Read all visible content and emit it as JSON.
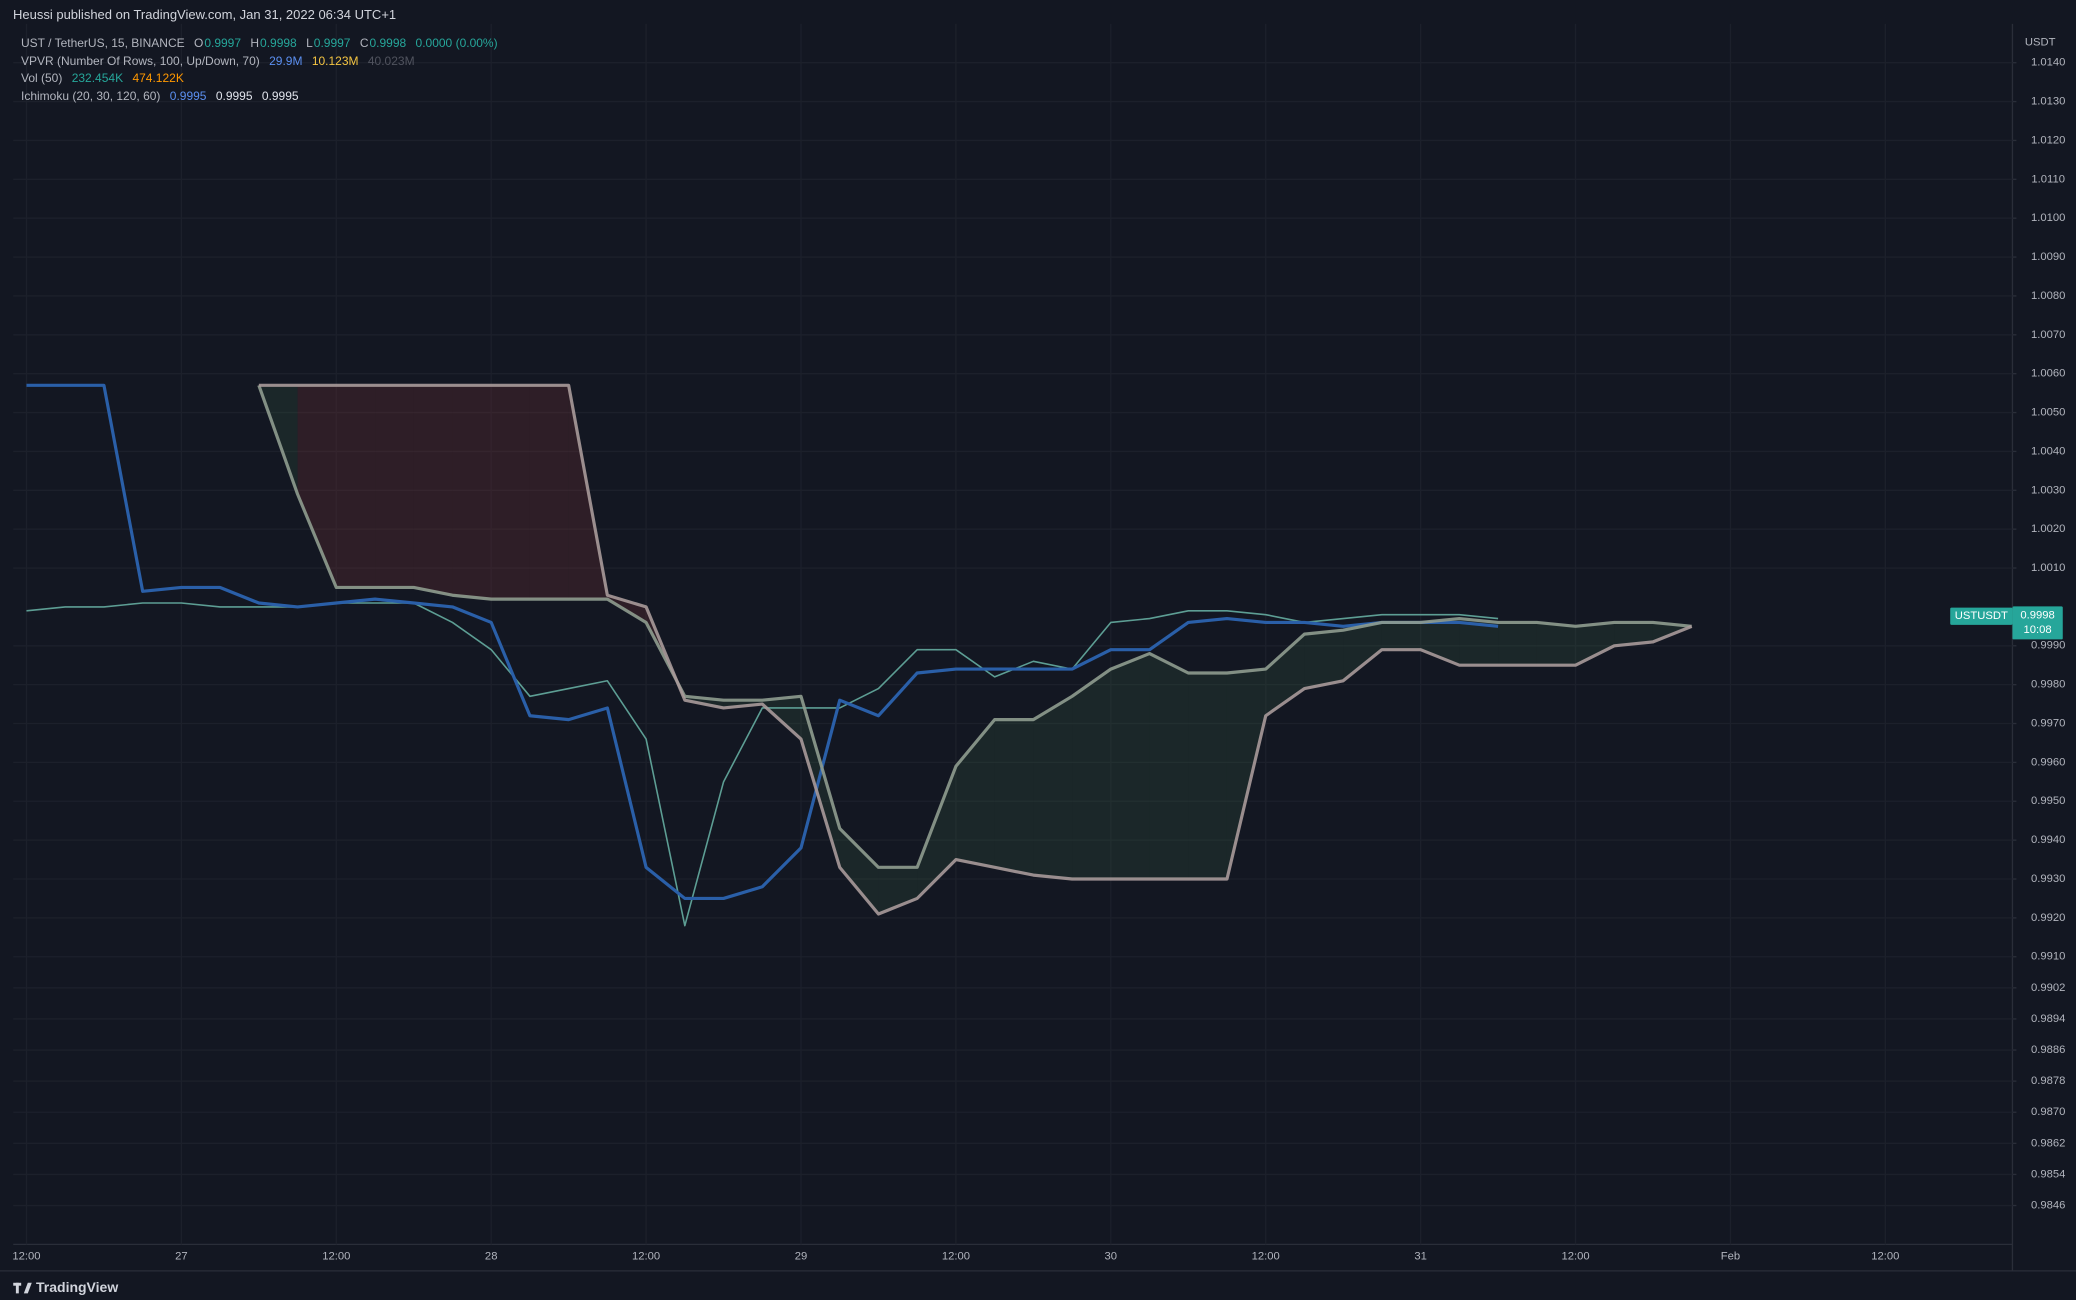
{
  "header": {
    "publisher": "Heussi published on TradingView.com, Jan 31, 2022 06:34 UTC+1"
  },
  "legend": {
    "symbol": "UST / TetherUS, 15, BINANCE",
    "ohlc": [
      {
        "key": "O",
        "value": "0.9997"
      },
      {
        "key": "H",
        "value": "0.9998"
      },
      {
        "key": "L",
        "value": "0.9997"
      },
      {
        "key": "C",
        "value": "0.9998"
      }
    ],
    "change": "0.0000 (0.00%)",
    "vpvr": {
      "label": "VPVR (Number Of Rows, 100, Up/Down, 70)",
      "values": [
        "29.9M",
        "10.123M",
        "40.023M"
      ]
    },
    "vol": {
      "label": "Vol (50)",
      "values": [
        "232.454K",
        "474.122K"
      ]
    },
    "ichimoku": {
      "label": "Ichimoku (20, 30, 120, 60)",
      "values": [
        "0.9995",
        "0.9995",
        "0.9995"
      ]
    }
  },
  "chart_data": {
    "type": "line",
    "y_unit": "USDT",
    "categories": [
      "12:00",
      null,
      null,
      null,
      "27",
      null,
      null,
      null,
      "12:00",
      null,
      null,
      null,
      "28",
      null,
      null,
      null,
      "12:00",
      null,
      null,
      null,
      "29",
      null,
      null,
      null,
      "12:00",
      null,
      null,
      null,
      "30",
      null,
      null,
      null,
      "12:00",
      null,
      null,
      null,
      "31",
      null,
      null,
      null,
      "12:00",
      null,
      null,
      null,
      "Feb",
      null,
      null,
      null,
      "12:00"
    ],
    "series": [
      {
        "color": "#5d9e94",
        "values": [
          0.9999,
          1.0,
          1.0,
          1.0001,
          1.0001,
          1.0,
          1.0,
          1.0,
          1.0001,
          1.0001,
          1.0001,
          0.9996,
          0.9989,
          0.9977,
          0.9979,
          0.9981,
          0.9966,
          0.9918,
          0.9955,
          0.9974,
          0.9974,
          0.9974,
          0.9979,
          0.9989,
          0.9989,
          0.9982,
          0.9986,
          0.9984,
          0.9996,
          0.9997,
          0.9999,
          0.9999,
          0.9998,
          0.9996,
          0.9997,
          0.9998,
          0.9998,
          0.9998,
          0.9997,
          null,
          null,
          null,
          null,
          null,
          null,
          null,
          null,
          null,
          null
        ]
      },
      {
        "color": "#2a5fa8",
        "values": [
          1.0057,
          1.0057,
          1.0057,
          1.0004,
          1.0005,
          1.0005,
          1.0001,
          1.0,
          1.0001,
          1.0002,
          1.0001,
          1.0,
          0.9996,
          0.9972,
          0.9971,
          0.9974,
          0.9933,
          0.9925,
          0.9925,
          0.9928,
          0.9938,
          0.9976,
          0.9972,
          0.9983,
          0.9984,
          0.9984,
          0.9984,
          0.9984,
          0.9989,
          0.9989,
          0.9996,
          0.9997,
          0.9996,
          0.9996,
          0.9995,
          0.9996,
          0.9996,
          0.9996,
          0.9995,
          null,
          null,
          null,
          null,
          null,
          null,
          null,
          null,
          null,
          null
        ]
      },
      {
        "color": "#8f9c8f",
        "values": [
          null,
          null,
          null,
          null,
          null,
          null,
          1.0057,
          1.0029,
          1.0005,
          1.0005,
          1.0005,
          1.0003,
          1.0002,
          1.0002,
          1.0002,
          1.0002,
          0.9996,
          0.9977,
          0.9976,
          0.9976,
          0.9977,
          0.9943,
          0.9933,
          0.9933,
          0.9959,
          0.9971,
          0.9971,
          0.9977,
          0.9984,
          0.9988,
          0.9983,
          0.9983,
          0.9984,
          0.9993,
          0.9994,
          0.9996,
          0.9996,
          0.9997,
          0.9996,
          0.9996,
          0.9995,
          0.9996,
          0.9996,
          0.9995,
          null,
          null,
          null,
          null,
          null
        ]
      },
      {
        "color": "#a89a9a",
        "values": [
          null,
          null,
          null,
          null,
          null,
          null,
          1.0057,
          1.0057,
          1.0057,
          1.0057,
          1.0057,
          1.0057,
          1.0057,
          1.0057,
          1.0057,
          1.0003,
          1.0,
          0.9976,
          0.9974,
          0.9975,
          0.9966,
          0.9933,
          0.9921,
          0.9925,
          0.9935,
          0.9933,
          0.9931,
          0.993,
          0.993,
          0.993,
          0.993,
          0.993,
          0.9972,
          0.9979,
          0.9981,
          0.9989,
          0.9989,
          0.9985,
          0.9985,
          0.9985,
          0.9985,
          0.999,
          0.9991,
          0.9995,
          null,
          null,
          null,
          null,
          null
        ]
      }
    ],
    "cloud_colors": [
      "rgba(60,100,70,0.22)",
      "rgba(120,50,55,0.28)"
    ],
    "ylim": [
      0.9836,
      1.015
    ],
    "yticks": [
      {
        "value": 1.014,
        "label": "1.0140"
      },
      {
        "value": 1.013,
        "label": "1.0130"
      },
      {
        "value": 1.012,
        "label": "1.0120"
      },
      {
        "value": 1.011,
        "label": "1.0110"
      },
      {
        "value": 1.01,
        "label": "1.0100"
      },
      {
        "value": 1.009,
        "label": "1.0090"
      },
      {
        "value": 1.008,
        "label": "1.0080"
      },
      {
        "value": 1.007,
        "label": "1.0070"
      },
      {
        "value": 1.006,
        "label": "1.0060"
      },
      {
        "value": 1.005,
        "label": "1.0050"
      },
      {
        "value": 1.004,
        "label": "1.0040"
      },
      {
        "value": 1.003,
        "label": "1.0030"
      },
      {
        "value": 1.002,
        "label": "1.0020"
      },
      {
        "value": 1.001,
        "label": "1.0010"
      },
      {
        "value": 0.999,
        "label": "0.9990"
      },
      {
        "value": 0.998,
        "label": "0.9980"
      },
      {
        "value": 0.997,
        "label": "0.9970"
      },
      {
        "value": 0.996,
        "label": "0.9960"
      },
      {
        "value": 0.995,
        "label": "0.9950"
      },
      {
        "value": 0.994,
        "label": "0.9940"
      },
      {
        "value": 0.993,
        "label": "0.9930"
      },
      {
        "value": 0.992,
        "label": "0.9920"
      },
      {
        "value": 0.991,
        "label": "0.9910"
      },
      0.9902,
      0.9894,
      0.9886,
      0.9878,
      {
        "value": 0.987,
        "label": "0.9870"
      },
      0.9862,
      0.9854,
      0.9846
    ],
    "grid": true,
    "last_price": {
      "symbol": "USTUSDT",
      "price": "0.9998",
      "countdown": "10:08"
    }
  },
  "footer": {
    "brand": "TradingView"
  }
}
